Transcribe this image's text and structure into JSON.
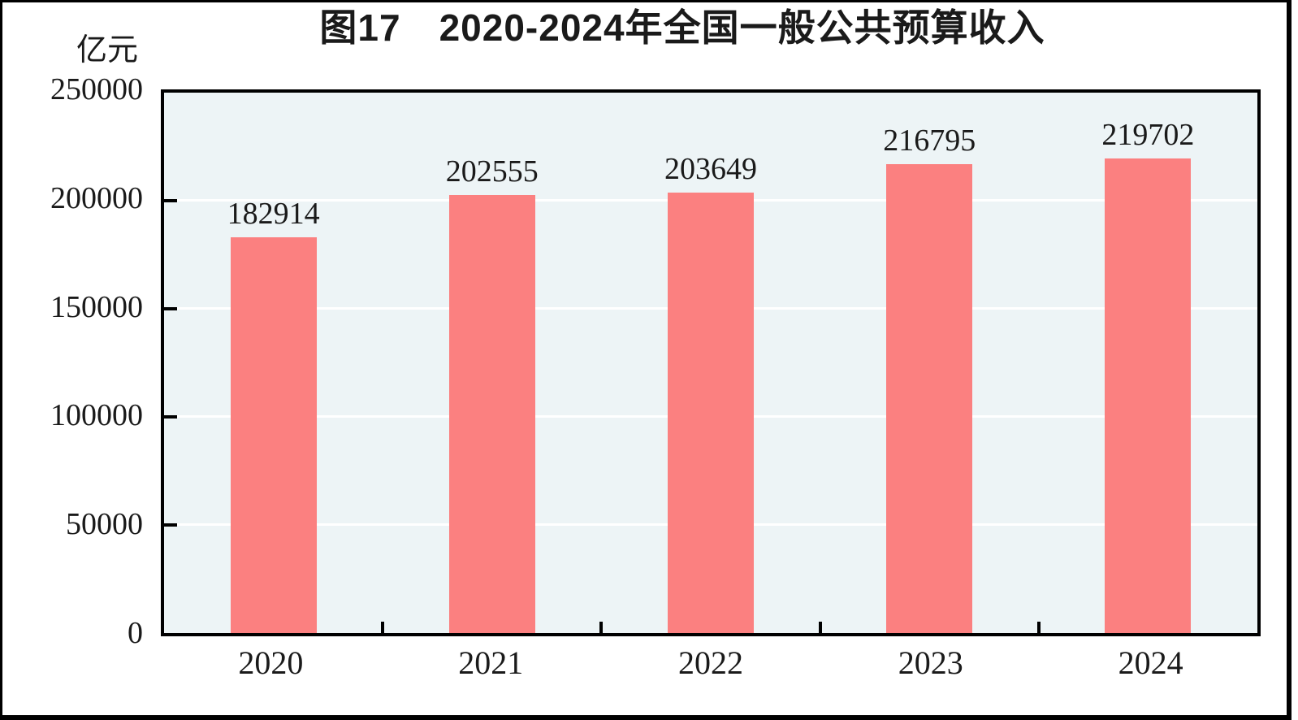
{
  "chart_data": {
    "type": "bar",
    "title": "图17　2020-2024年全国一般公共预算收入",
    "unit_label": "亿元",
    "categories": [
      "2020",
      "2021",
      "2022",
      "2023",
      "2024"
    ],
    "values": [
      182914,
      202555,
      203649,
      216795,
      219702
    ],
    "data_labels": [
      "182914",
      "202555",
      "203649",
      "216795",
      "219702"
    ],
    "yticks": [
      0,
      50000,
      100000,
      150000,
      200000,
      250000
    ],
    "ylim": [
      0,
      250000
    ],
    "ytick_step": 50000,
    "grid": true,
    "gridline_color": "#ffffff",
    "bar_color": "#fb8080",
    "plot_bg": "#edf4f6",
    "axis_color": "#000000",
    "text_color": "#1a1a1a"
  }
}
